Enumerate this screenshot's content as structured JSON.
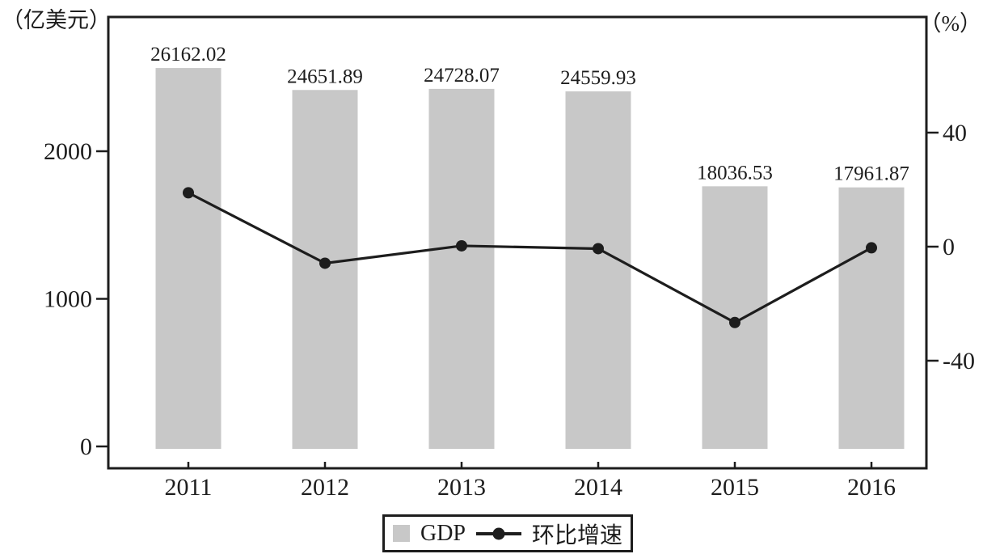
{
  "axes": {
    "left_unit": "（亿美元）",
    "right_unit": "（%）"
  },
  "legend": {
    "gdp_label": "GDP",
    "growth_label": "环比增速"
  },
  "chart_data": {
    "type": "bar",
    "subtype": "bar-line-combo",
    "title": "",
    "categories": [
      "2011",
      "2012",
      "2013",
      "2014",
      "2015",
      "2016"
    ],
    "series": [
      {
        "name": "GDP",
        "type": "bar",
        "axis": "left",
        "unit": "亿美元",
        "color": "#c8c8c8",
        "values": [
          26162.02,
          24651.89,
          24728.07,
          24559.93,
          18036.53,
          17961.87
        ],
        "value_labels": [
          "26162.02",
          "24651.89",
          "24728.07",
          "24559.93",
          "18036.53",
          "17961.87"
        ]
      },
      {
        "name": "环比增速",
        "type": "line",
        "axis": "right",
        "unit": "%",
        "color": "#1d1d1d",
        "marker": "filled-circle",
        "estimated": true,
        "values": [
          18.9,
          -5.8,
          0.3,
          -0.7,
          -26.6,
          -0.4
        ]
      }
    ],
    "left_axis": {
      "unit_label": "（亿美元）",
      "ticks": [
        0,
        1000,
        2000
      ],
      "bar_plot_scale": 0.1
    },
    "right_axis": {
      "unit_label": "（%）",
      "ticks": [
        40,
        0,
        -40
      ]
    },
    "legend": [
      "GDP",
      "环比增速"
    ],
    "legend_position": "bottom-center",
    "grid": false
  }
}
